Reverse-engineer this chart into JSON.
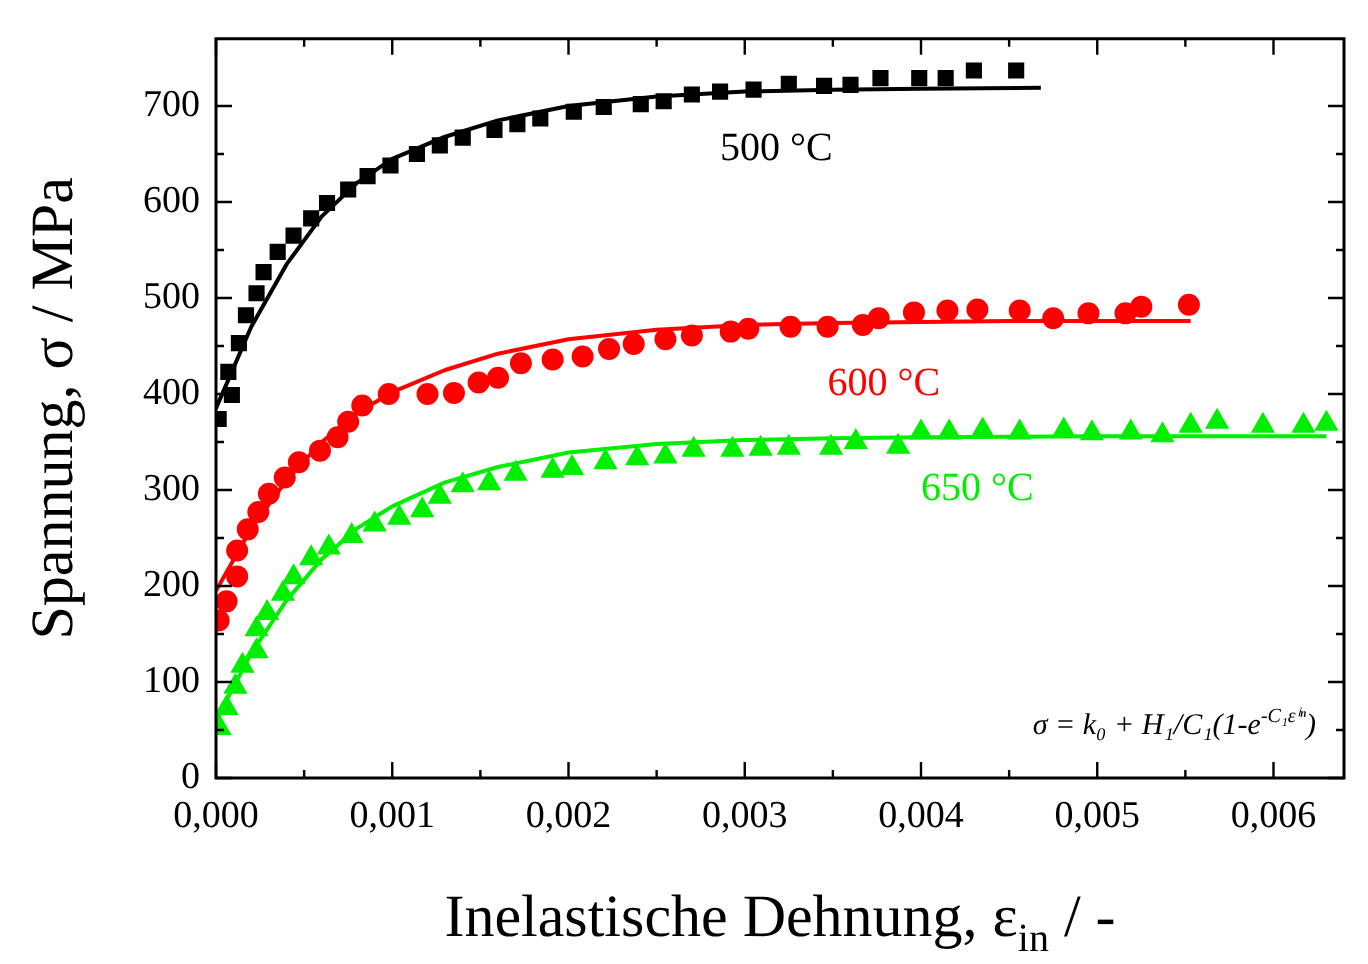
{
  "chart_data": {
    "type": "scatter",
    "xlabel": "Inelastische Dehnung, ε$_{in}$ / -",
    "ylabel": "Spannung, σ / MPa",
    "annotations": [
      "σ = k₀ + H₁/C₁(1-e$^{-C₁εⁱⁿ}$)"
    ],
    "xlim": [
      0,
      0.0064
    ],
    "ylim": [
      0,
      770
    ],
    "xticks": [
      {
        "value": 0,
        "label": "0,000"
      },
      {
        "value": 0.0005,
        "label": null
      },
      {
        "value": 0.001,
        "label": "0,001"
      },
      {
        "value": 0.0015,
        "label": null
      },
      {
        "value": 0.002,
        "label": "0,002"
      },
      {
        "value": 0.0025,
        "label": null
      },
      {
        "value": 0.003,
        "label": "0,003"
      },
      {
        "value": 0.0035,
        "label": null
      },
      {
        "value": 0.004,
        "label": "0,004"
      },
      {
        "value": 0.0045,
        "label": null
      },
      {
        "value": 0.005,
        "label": "0,005"
      },
      {
        "value": 0.0055,
        "label": null
      },
      {
        "value": 0.006,
        "label": "0,006"
      }
    ],
    "yticks": [
      0,
      {
        "value": 50,
        "label": null
      },
      100,
      {
        "value": 150,
        "label": null
      },
      200,
      {
        "value": 250,
        "label": null
      },
      300,
      {
        "value": 350,
        "label": null
      },
      400,
      {
        "value": 450,
        "label": null
      },
      500,
      {
        "value": 550,
        "label": null
      },
      600,
      {
        "value": 650,
        "label": null
      },
      700
    ],
    "legend": false,
    "grid": false,
    "series": [
      {
        "name": "500 °C",
        "marker": "square",
        "color": "#000000",
        "x": [
          1.5e-05,
          7e-05,
          9e-05,
          0.00013,
          0.00017,
          0.00023,
          0.00027,
          0.00035,
          0.00044,
          0.00054,
          0.00063,
          0.00075,
          0.00086,
          0.00099,
          0.00114,
          0.00127,
          0.0014,
          0.00158,
          0.00171,
          0.00184,
          0.00203,
          0.0022,
          0.00241,
          0.00254,
          0.0027,
          0.00286,
          0.00305,
          0.00325,
          0.00345,
          0.0036,
          0.00377,
          0.00399,
          0.00414,
          0.0043,
          0.00454
        ],
        "values": [
          374,
          423,
          399,
          453,
          482,
          505,
          527,
          548,
          565,
          583,
          599,
          613,
          627,
          638,
          650,
          659,
          667,
          675,
          681,
          687,
          694,
          699,
          702,
          705,
          712,
          715,
          717,
          723,
          721,
          722,
          729,
          729,
          729,
          737,
          737
        ]
      },
      {
        "name": "600 °C",
        "marker": "circle",
        "color": "#ff0000",
        "x": [
          1.5e-05,
          6e-05,
          0.00012,
          0.00012,
          0.00018,
          0.00024,
          0.0003,
          0.00039,
          0.00047,
          0.00059,
          0.00069,
          0.00075,
          0.00083,
          0.00098,
          0.0012,
          0.00135,
          0.00149,
          0.0016,
          0.00173,
          0.00191,
          0.00208,
          0.00223,
          0.00237,
          0.00255,
          0.0027,
          0.00292,
          0.00302,
          0.00326,
          0.00347,
          0.00367,
          0.00376,
          0.00396,
          0.00415,
          0.00432,
          0.00456,
          0.00475,
          0.00495,
          0.00516,
          0.00525,
          0.00552
        ],
        "values": [
          164,
          184,
          210,
          237,
          259,
          277,
          296,
          313,
          329,
          341,
          355,
          371,
          388,
          400,
          400,
          401,
          412,
          417,
          432,
          436,
          439,
          447,
          452,
          457,
          461,
          465,
          468,
          470,
          470,
          472,
          479,
          485,
          487,
          488,
          487,
          479,
          484,
          484,
          491,
          493
        ]
      },
      {
        "name": "650 °C",
        "marker": "triangle",
        "color": "#00ee00",
        "x": [
          2e-05,
          6e-05,
          0.00011,
          0.00015,
          0.00023,
          0.00023,
          0.00029,
          0.00038,
          0.00044,
          0.00054,
          0.00064,
          0.00077,
          0.0009,
          0.00104,
          0.00117,
          0.00127,
          0.0014,
          0.00155,
          0.0017,
          0.00191,
          0.00202,
          0.00221,
          0.00239,
          0.00255,
          0.00271,
          0.00293,
          0.00309,
          0.00325,
          0.00349,
          0.00363,
          0.00387,
          0.004,
          0.00416,
          0.00435,
          0.00456,
          0.00481,
          0.00497,
          0.00519,
          0.00537,
          0.00553,
          0.00568,
          0.00594,
          0.00617,
          0.0063
        ],
        "values": [
          52,
          73,
          95,
          117,
          132,
          155,
          172,
          192,
          209,
          229,
          240,
          252,
          264,
          271,
          279,
          293,
          305,
          307,
          317,
          320,
          323,
          329,
          333,
          335,
          342,
          342,
          343,
          344,
          344,
          350,
          345,
          360,
          360,
          362,
          360,
          362,
          359,
          360,
          357,
          367,
          371,
          367,
          367,
          369
        ]
      },
      {
        "type": "line",
        "marker": "none",
        "color": "#000000",
        "x": [
          0,
          0.0002,
          0.0004,
          0.0006,
          0.0008,
          0.001,
          0.0013,
          0.0016,
          0.002,
          0.0025,
          0.003,
          0.0035,
          0.004,
          0.00468
        ],
        "values": [
          385,
          470,
          535,
          585,
          620,
          645,
          668,
          685,
          700,
          710,
          715,
          717,
          718,
          719
        ]
      },
      {
        "type": "line",
        "marker": "none",
        "color": "#ff0000",
        "x": [
          0,
          0.0002,
          0.0004,
          0.0006,
          0.0008,
          0.001,
          0.0013,
          0.0016,
          0.002,
          0.0025,
          0.003,
          0.0035,
          0.004,
          0.0045,
          0.00553
        ],
        "values": [
          195,
          260,
          310,
          350,
          380,
          402,
          425,
          442,
          457,
          467,
          472,
          474,
          475,
          476,
          476
        ]
      },
      {
        "type": "line",
        "marker": "none",
        "color": "#00ee00",
        "x": [
          0,
          0.0002,
          0.0004,
          0.0006,
          0.0008,
          0.001,
          0.0013,
          0.0016,
          0.002,
          0.0025,
          0.003,
          0.0035,
          0.004,
          0.005,
          0.0063
        ],
        "values": [
          60,
          130,
          185,
          228,
          260,
          283,
          308,
          324,
          339,
          348,
          352,
          354,
          355,
          356,
          356
        ]
      }
    ]
  }
}
